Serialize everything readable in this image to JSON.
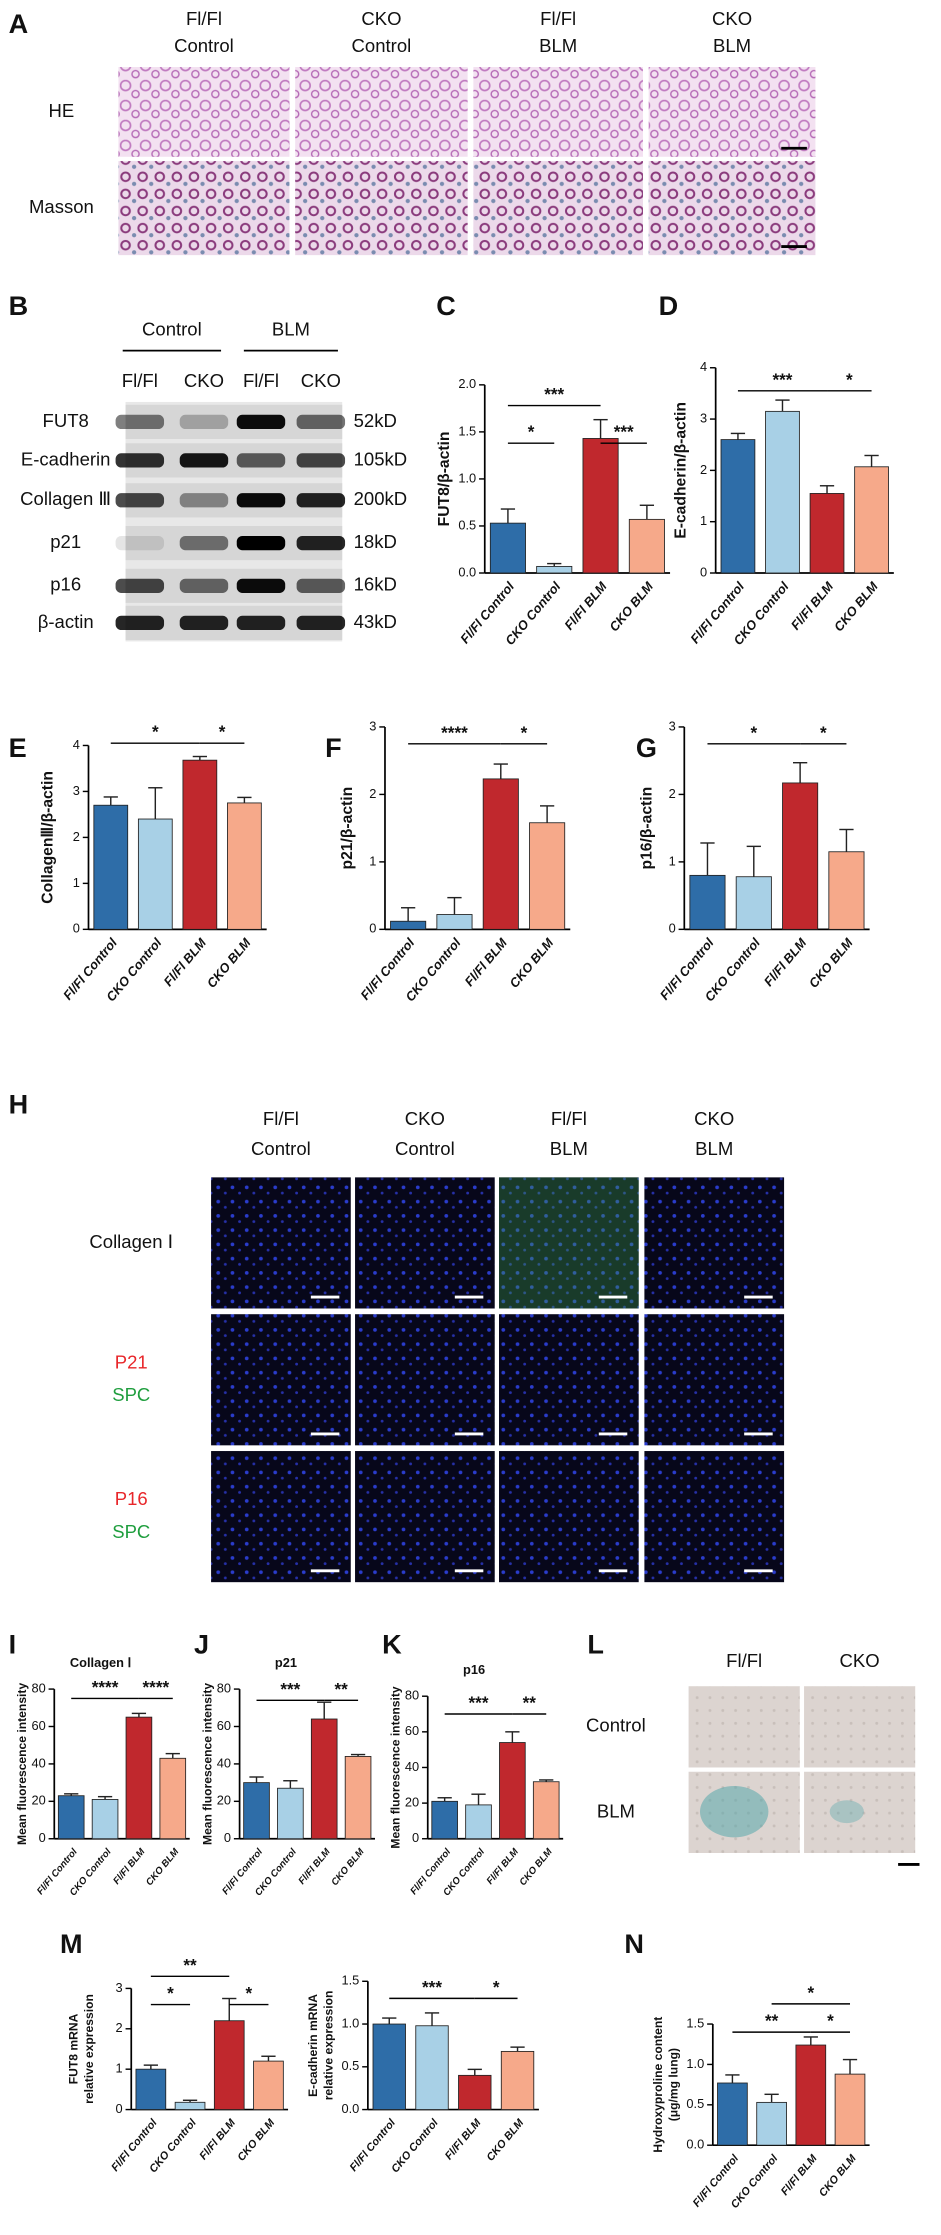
{
  "panel_labels": [
    "A",
    "B",
    "C",
    "D",
    "E",
    "F",
    "G",
    "H",
    "I",
    "J",
    "K",
    "L",
    "M",
    "N"
  ],
  "panel_a": {
    "columns": [
      [
        "Fl/Fl",
        "Control"
      ],
      [
        "CKO",
        "Control"
      ],
      [
        "Fl/Fl",
        "BLM"
      ],
      [
        "CKO",
        "BLM"
      ]
    ],
    "rows": [
      "HE",
      "Masson"
    ]
  },
  "panel_b": {
    "groups": [
      "Control",
      "BLM"
    ],
    "lanes": [
      "Fl/Fl",
      "CKO",
      "Fl/Fl",
      "CKO"
    ],
    "proteins": [
      "FUT8",
      "E-cadherin",
      "Collagen Ⅲ",
      "p21",
      "p16",
      "β-actin"
    ],
    "sizes": [
      "52kD",
      "105kD",
      "200kD",
      "18kD",
      "16kD",
      "43kD"
    ]
  },
  "panel_h": {
    "columns": [
      [
        "Fl/Fl",
        "Control"
      ],
      [
        "CKO",
        "Control"
      ],
      [
        "Fl/Fl",
        "BLM"
      ],
      [
        "CKO",
        "BLM"
      ]
    ],
    "rows": [
      {
        "lines": [
          "Collagen Ⅰ"
        ],
        "colors": [
          "#111111"
        ]
      },
      {
        "lines": [
          "P21",
          "SPC"
        ],
        "colors": [
          "#e8262a",
          "#1f9e3e"
        ]
      },
      {
        "lines": [
          "P16",
          "SPC"
        ],
        "colors": [
          "#e8262a",
          "#1f9e3e"
        ]
      }
    ]
  },
  "panel_l": {
    "columns": [
      "Fl/Fl",
      "CKO"
    ],
    "rows": [
      "Control",
      "BLM"
    ]
  },
  "chart_data": [
    {
      "type": "bar",
      "ylabel": "FUT8/β-actin",
      "categories": [
        "Fl/Fl Control",
        "CKO Control",
        "Fl/Fl BLM",
        "CKO BLM"
      ],
      "values": [
        0.53,
        0.07,
        1.43,
        0.57
      ],
      "errors": [
        0.15,
        0.03,
        0.2,
        0.15
      ],
      "colors": [
        "#2e6da8",
        "#a8d0e6",
        "#c0282d",
        "#f6a98a"
      ],
      "ylim": [
        0,
        2
      ],
      "yticks": [
        {
          "value": 0,
          "label": "0.0"
        },
        0.5,
        {
          "value": 1,
          "label": "1.0"
        },
        1.5,
        {
          "value": 2,
          "label": "2.0"
        }
      ],
      "annotations": [
        "***",
        "*",
        "***"
      ]
    },
    {
      "type": "bar",
      "ylabel": "E-cadherin/β-actin",
      "categories": [
        "Fl/Fl Control",
        "CKO Control",
        "Fl/Fl BLM",
        "CKO BLM"
      ],
      "values": [
        2.6,
        3.15,
        1.55,
        2.07
      ],
      "errors": [
        0.12,
        0.22,
        0.15,
        0.22
      ],
      "colors": [
        "#2e6da8",
        "#a8d0e6",
        "#c0282d",
        "#f6a98a"
      ],
      "ylim": [
        0,
        4
      ],
      "yticks": [
        0,
        1,
        2,
        3,
        4
      ],
      "annotations": [
        "***",
        "*"
      ]
    },
    {
      "type": "bar",
      "ylabel": "CollagenⅢ/β-actin",
      "categories": [
        "Fl/Fl Control",
        "CKO Control",
        "Fl/Fl BLM",
        "CKO BLM"
      ],
      "values": [
        2.7,
        2.4,
        3.68,
        2.75
      ],
      "errors": [
        0.18,
        0.68,
        0.08,
        0.12
      ],
      "colors": [
        "#2e6da8",
        "#a8d0e6",
        "#c0282d",
        "#f6a98a"
      ],
      "ylim": [
        0,
        4
      ],
      "yticks": [
        0,
        1,
        2,
        3,
        4
      ],
      "annotations": [
        "*",
        "*"
      ]
    },
    {
      "type": "bar",
      "ylabel": "p21/β-actin",
      "categories": [
        "Fl/Fl Control",
        "CKO Control",
        "Fl/Fl BLM",
        "CKO BLM"
      ],
      "values": [
        0.12,
        0.22,
        2.23,
        1.58
      ],
      "errors": [
        0.2,
        0.25,
        0.22,
        0.25
      ],
      "colors": [
        "#2e6da8",
        "#a8d0e6",
        "#c0282d",
        "#f6a98a"
      ],
      "ylim": [
        0,
        3
      ],
      "yticks": [
        0,
        1,
        2,
        3
      ],
      "annotations": [
        "****",
        "*"
      ]
    },
    {
      "type": "bar",
      "ylabel": "p16/β-actin",
      "categories": [
        "Fl/Fl Control",
        "CKO Control",
        "Fl/Fl BLM",
        "CKO BLM"
      ],
      "values": [
        0.8,
        0.78,
        2.17,
        1.15
      ],
      "errors": [
        0.48,
        0.45,
        0.3,
        0.33
      ],
      "colors": [
        "#2e6da8",
        "#a8d0e6",
        "#c0282d",
        "#f6a98a"
      ],
      "ylim": [
        0,
        3
      ],
      "yticks": [
        0,
        1,
        2,
        3
      ],
      "annotations": [
        "*",
        "*"
      ]
    },
    {
      "type": "bar",
      "title": "Collagen Ⅰ",
      "ylabel": "Mean fluorescence intensity",
      "categories": [
        "Fl/Fl Control",
        "CKO Control",
        "Fl/Fl BLM",
        "CKO BLM"
      ],
      "values": [
        23,
        21,
        65,
        43
      ],
      "errors": [
        1,
        1.5,
        2,
        2.5
      ],
      "colors": [
        "#2e6da8",
        "#a8d0e6",
        "#c0282d",
        "#f6a98a"
      ],
      "ylim": [
        0,
        80
      ],
      "yticks": [
        0,
        20,
        40,
        60,
        80
      ],
      "annotations": [
        "****",
        "****"
      ]
    },
    {
      "type": "bar",
      "title": "p21",
      "ylabel": "Mean fluorescence intensity",
      "categories": [
        "Fl/Fl Control",
        "CKO Control",
        "Fl/Fl BLM",
        "CKO BLM"
      ],
      "values": [
        30,
        27,
        64,
        44
      ],
      "errors": [
        3,
        4,
        9,
        1
      ],
      "colors": [
        "#2e6da8",
        "#a8d0e6",
        "#c0282d",
        "#f6a98a"
      ],
      "ylim": [
        0,
        80
      ],
      "yticks": [
        0,
        20,
        40,
        60,
        80
      ],
      "annotations": [
        "***",
        "**"
      ]
    },
    {
      "type": "bar",
      "title": "p16",
      "ylabel": "Mean fluorescence intensity",
      "categories": [
        "Fl/Fl Control",
        "CKO Control",
        "Fl/Fl BLM",
        "CKO BLM"
      ],
      "values": [
        21,
        19,
        54,
        32
      ],
      "errors": [
        2,
        6,
        6,
        1
      ],
      "colors": [
        "#2e6da8",
        "#a8d0e6",
        "#c0282d",
        "#f6a98a"
      ],
      "ylim": [
        0,
        80
      ],
      "yticks": [
        0,
        20,
        40,
        60,
        80
      ],
      "annotations": [
        "***",
        "**"
      ]
    },
    {
      "type": "bar",
      "ylabel": [
        "FUT8 mRNA",
        "relative expression"
      ],
      "categories": [
        "Fl/Fl Control",
        "CKO Control",
        "Fl/Fl BLM",
        "CKO BLM"
      ],
      "values": [
        1.0,
        0.18,
        2.2,
        1.2
      ],
      "errors": [
        0.1,
        0.05,
        0.55,
        0.12
      ],
      "colors": [
        "#2e6da8",
        "#a8d0e6",
        "#c0282d",
        "#f6a98a"
      ],
      "ylim": [
        0,
        3
      ],
      "yticks": [
        0,
        1,
        2,
        3
      ],
      "annotations": [
        "**",
        "*",
        "*"
      ]
    },
    {
      "type": "bar",
      "ylabel": [
        "E-cadherin mRNA",
        "relative expression"
      ],
      "categories": [
        "Fl/Fl Control",
        "CKO Control",
        "Fl/Fl BLM",
        "CKO BLM"
      ],
      "values": [
        1.0,
        0.98,
        0.4,
        0.68
      ],
      "errors": [
        0.07,
        0.15,
        0.07,
        0.05
      ],
      "colors": [
        "#2e6da8",
        "#a8d0e6",
        "#c0282d",
        "#f6a98a"
      ],
      "ylim": [
        0,
        1.5
      ],
      "yticks": [
        {
          "value": 0,
          "label": "0.0"
        },
        0.5,
        {
          "value": 1,
          "label": "1.0"
        },
        1.5
      ],
      "annotations": [
        "***",
        "*"
      ]
    },
    {
      "type": "bar",
      "ylabel": [
        "Hydroxyproline content",
        "(μg/mg lung)"
      ],
      "categories": [
        "Fl/Fl Control",
        "CKO Control",
        "Fl/Fl BLM",
        "CKO BLM"
      ],
      "values": [
        0.77,
        0.53,
        1.24,
        0.88
      ],
      "errors": [
        0.1,
        0.1,
        0.1,
        0.18
      ],
      "colors": [
        "#2e6da8",
        "#a8d0e6",
        "#c0282d",
        "#f6a98a"
      ],
      "ylim": [
        0,
        1.5
      ],
      "yticks": [
        {
          "value": 0,
          "label": "0.0"
        },
        0.5,
        {
          "value": 1,
          "label": "1.0"
        },
        1.5
      ],
      "annotations": [
        "*",
        "**",
        "*"
      ]
    }
  ]
}
